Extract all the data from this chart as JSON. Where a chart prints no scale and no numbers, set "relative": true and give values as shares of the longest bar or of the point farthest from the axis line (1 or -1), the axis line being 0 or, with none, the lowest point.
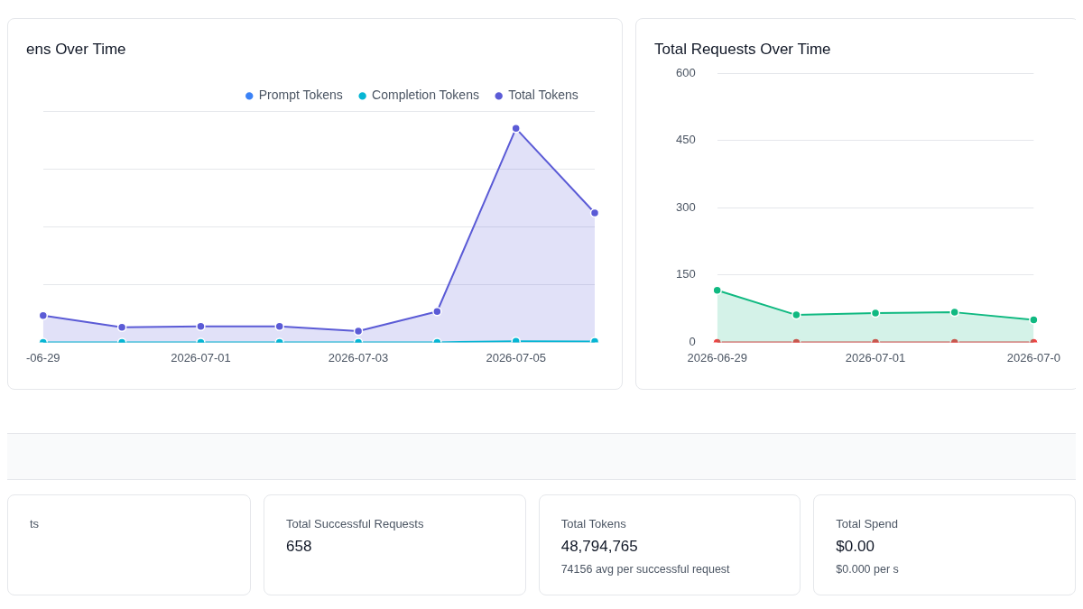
{
  "chart_data": [
    {
      "type": "area",
      "title": "ens Over Time",
      "relative": true,
      "grid": "y",
      "legend": "top right",
      "marker": "circle",
      "categories": [
        "-06-29",
        null,
        "2026-07-01",
        null,
        "2026-07-03",
        null,
        "2026-07-05",
        null
      ],
      "series": [
        {
          "name": "Prompt Tokens",
          "type": "line",
          "color": "#3b82f6",
          "values": [
            null,
            null,
            null,
            null,
            null,
            null,
            null,
            null
          ]
        },
        {
          "name": "Completion Tokens",
          "type": "line",
          "color": "#06b6d4",
          "values": [
            0.0,
            0.0,
            0.0,
            0.0,
            0.0,
            0.0,
            0.005,
            0.004
          ]
        },
        {
          "name": "Total Tokens",
          "type": "area",
          "color": "#5b5bd6",
          "values": [
            0.125,
            0.07,
            0.074,
            0.074,
            0.052,
            0.144,
            1,
            0.605
          ]
        }
      ]
    },
    {
      "type": "line",
      "title": "Total Requests Over Time",
      "grid": "y",
      "marker": "circle",
      "categories": [
        "2026-06-29",
        null,
        "2026-07-01",
        null,
        "2026-07-0"
      ],
      "ylim": [
        0,
        600
      ],
      "yticks": [
        0,
        150,
        300,
        450,
        600
      ],
      "series": [
        {
          "type": "area",
          "color": "#10b981",
          "values": [
            116,
            61,
            65,
            67,
            50
          ]
        },
        {
          "type": "line",
          "color": "#ef4444",
          "values": [
            0,
            0,
            0,
            0,
            0
          ]
        }
      ]
    },
    {
      "type": "other",
      "annotations": [
        "ts",
        "Total Successful Requests",
        "658",
        "Total Tokens",
        "48,794,765",
        "74156 avg per successful request",
        "Total Spend",
        "$0.00",
        "$0.000 per s"
      ]
    }
  ]
}
